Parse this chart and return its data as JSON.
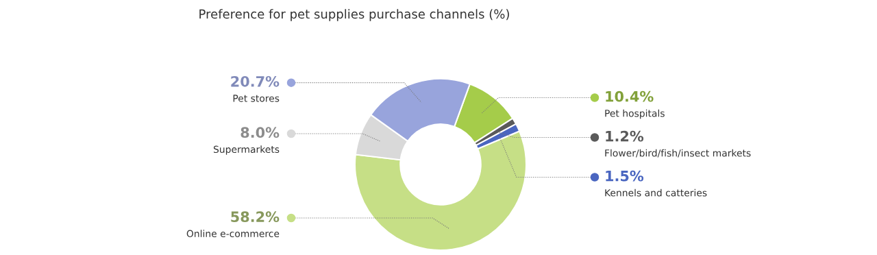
{
  "chart_data": {
    "type": "donut",
    "title": "Preference for pet supplies purchase channels (%)",
    "categories": [
      "Pet hospitals",
      "Flower/bird/fish/insect markets",
      "Kennels and catteries",
      "Online e-commerce",
      "Supermarkets",
      "Pet stores"
    ],
    "values": [
      10.4,
      1.2,
      1.5,
      58.2,
      8.0,
      20.7
    ],
    "value_labels": [
      "10.4%",
      "1.2%",
      "1.5%",
      "58.2%",
      "8.0%",
      "20.7%"
    ],
    "colors": [
      "#a5cc4a",
      "#5a5a5a",
      "#4a66c0",
      "#c6df86",
      "#d9d9d9",
      "#98a4dc"
    ],
    "legend": false
  }
}
